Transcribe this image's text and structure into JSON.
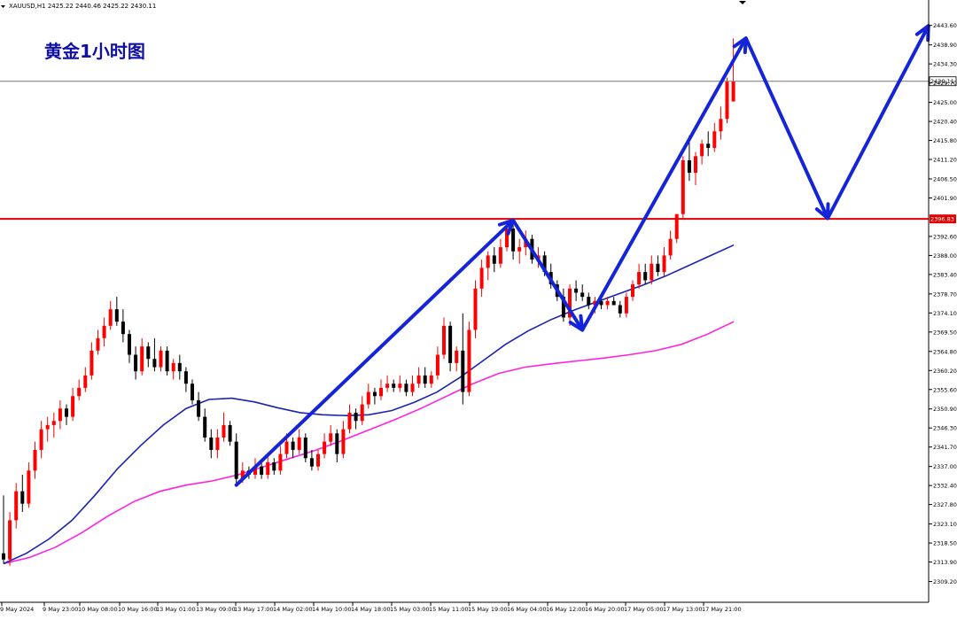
{
  "chart_data": {
    "type": "candlestick",
    "symbol_info": "XAUUSD,H1  2425.22 2440.46 2425.22 2430.11",
    "overlay_title": "黄金1小时图",
    "ylim": [
      2309.2,
      2446.0
    ],
    "y_ticks": [
      "2443.60",
      "2438.90",
      "2434.30",
      "2429.70",
      "2425.00",
      "2420.40",
      "2415.80",
      "2411.20",
      "2406.50",
      "2401.90",
      "2396.83",
      "2392.60",
      "2388.00",
      "2383.40",
      "2378.70",
      "2374.10",
      "2369.50",
      "2364.80",
      "2360.20",
      "2355.60",
      "2350.90",
      "2346.30",
      "2341.70",
      "2337.00",
      "2332.40",
      "2327.80",
      "2323.10",
      "2318.50",
      "2313.90",
      "2309.20"
    ],
    "x_ticks": [
      "9 May 2024",
      "9 May 23:00",
      "10 May 08:00",
      "10 May 16:00",
      "13 May 01:00",
      "13 May 09:00",
      "13 May 17:00",
      "14 May 02:00",
      "14 May 10:00",
      "14 May 18:00",
      "15 May 03:00",
      "15 May 11:00",
      "15 May 19:00",
      "16 May 04:00",
      "16 May 12:00",
      "16 May 20:00",
      "17 May 05:00",
      "17 May 13:00",
      "17 May 21:00"
    ],
    "current_price": "2430.11",
    "resistance_level": "2396.83",
    "colors": {
      "bull": "#ff0000",
      "bear": "#000000",
      "ma_fast": "#1a24b0",
      "ma_slow": "#ff22dd",
      "arrow": "#1424d8",
      "level_line": "#e00000",
      "title": "#1010a8"
    },
    "candles": [
      [
        2316.0,
        2330.0,
        2313.5,
        2314.5
      ],
      [
        2314.5,
        2326.0,
        2313.0,
        2324.0
      ],
      [
        2324.0,
        2333.0,
        2322.0,
        2331.0
      ],
      [
        2331.0,
        2335.0,
        2326.0,
        2328.0
      ],
      [
        2328.0,
        2338.0,
        2327.0,
        2336.0
      ],
      [
        2336.0,
        2343.0,
        2334.0,
        2341.0
      ],
      [
        2341.0,
        2348.0,
        2339.0,
        2346.0
      ],
      [
        2346.0,
        2349.0,
        2343.0,
        2347.0
      ],
      [
        2347.0,
        2350.0,
        2344.0,
        2348.0
      ],
      [
        2348.0,
        2353.0,
        2346.0,
        2351.0
      ],
      [
        2351.0,
        2352.0,
        2347.0,
        2349.0
      ],
      [
        2349.0,
        2356.0,
        2348.0,
        2354.0
      ],
      [
        2354.0,
        2358.0,
        2353.0,
        2356.0
      ],
      [
        2356.0,
        2361.0,
        2355.0,
        2359.0
      ],
      [
        2359.0,
        2367.0,
        2358.0,
        2365.0
      ],
      [
        2365.0,
        2370.0,
        2364.0,
        2368.0
      ],
      [
        2368.0,
        2373.0,
        2366.0,
        2371.0
      ],
      [
        2371.0,
        2377.0,
        2370.0,
        2375.0
      ],
      [
        2375.0,
        2378.0,
        2371.0,
        2372.0
      ],
      [
        2372.0,
        2375.0,
        2367.0,
        2369.0
      ],
      [
        2369.0,
        2370.0,
        2362.0,
        2364.0
      ],
      [
        2364.0,
        2366.0,
        2358.0,
        2360.0
      ],
      [
        2360.0,
        2368.0,
        2359.0,
        2366.0
      ],
      [
        2366.0,
        2367.0,
        2361.0,
        2363.0
      ],
      [
        2363.0,
        2368.0,
        2360.0,
        2361.0
      ],
      [
        2361.0,
        2366.0,
        2360.0,
        2365.0
      ],
      [
        2365.0,
        2366.0,
        2359.0,
        2360.0
      ],
      [
        2360.0,
        2363.0,
        2358.0,
        2362.0
      ],
      [
        2362.0,
        2364.0,
        2358.0,
        2360.0
      ],
      [
        2360.0,
        2361.0,
        2355.0,
        2357.0
      ],
      [
        2357.0,
        2358.0,
        2352.0,
        2353.0
      ],
      [
        2353.0,
        2355.0,
        2348.0,
        2349.0
      ],
      [
        2349.0,
        2351.0,
        2343.0,
        2344.0
      ],
      [
        2344.0,
        2346.0,
        2339.0,
        2341.0
      ],
      [
        2341.0,
        2346.0,
        2339.0,
        2344.0
      ],
      [
        2344.0,
        2350.0,
        2343.0,
        2347.0
      ],
      [
        2347.0,
        2348.0,
        2342.0,
        2343.0
      ],
      [
        2343.0,
        2345.0,
        2332.5,
        2334.0
      ],
      [
        2334.0,
        2338.0,
        2333.0,
        2336.0
      ],
      [
        2336.0,
        2337.0,
        2334.0,
        2335.0
      ],
      [
        2335.0,
        2339.0,
        2334.0,
        2337.0
      ],
      [
        2337.0,
        2338.0,
        2334.0,
        2335.0
      ],
      [
        2335.0,
        2340.0,
        2334.0,
        2338.0
      ],
      [
        2338.0,
        2339.0,
        2335.0,
        2336.0
      ],
      [
        2336.0,
        2342.0,
        2335.0,
        2340.0
      ],
      [
        2340.0,
        2345.0,
        2339.0,
        2343.0
      ],
      [
        2343.0,
        2344.0,
        2339.0,
        2341.0
      ],
      [
        2341.0,
        2346.0,
        2340.0,
        2344.0
      ],
      [
        2344.0,
        2345.0,
        2338.0,
        2339.0
      ],
      [
        2339.0,
        2341.0,
        2336.0,
        2337.0
      ],
      [
        2337.0,
        2341.0,
        2336.0,
        2340.0
      ],
      [
        2340.0,
        2345.0,
        2339.0,
        2343.0
      ],
      [
        2343.0,
        2347.0,
        2342.0,
        2345.0
      ],
      [
        2345.0,
        2346.0,
        2338.0,
        2340.0
      ],
      [
        2340.0,
        2348.0,
        2339.0,
        2346.0
      ],
      [
        2346.0,
        2352.0,
        2345.0,
        2350.0
      ],
      [
        2350.0,
        2351.0,
        2346.0,
        2348.0
      ],
      [
        2348.0,
        2354.0,
        2347.0,
        2352.0
      ],
      [
        2352.0,
        2357.0,
        2351.0,
        2355.0
      ],
      [
        2355.0,
        2356.0,
        2352.0,
        2354.0
      ],
      [
        2354.0,
        2358.0,
        2353.0,
        2356.0
      ],
      [
        2356.0,
        2359.0,
        2355.0,
        2357.0
      ],
      [
        2357.0,
        2358.0,
        2355.0,
        2356.0
      ],
      [
        2356.0,
        2359.0,
        2355.0,
        2357.0
      ],
      [
        2357.0,
        2358.0,
        2354.0,
        2355.0
      ],
      [
        2355.0,
        2359.0,
        2354.0,
        2357.0
      ],
      [
        2357.0,
        2361.0,
        2356.0,
        2359.0
      ],
      [
        2359.0,
        2361.0,
        2356.0,
        2357.0
      ],
      [
        2357.0,
        2360.0,
        2356.0,
        2359.0
      ],
      [
        2359.0,
        2366.0,
        2358.0,
        2364.0
      ],
      [
        2364.0,
        2373.0,
        2363.0,
        2371.0
      ],
      [
        2371.0,
        2372.0,
        2360.0,
        2362.0
      ],
      [
        2362.0,
        2366.0,
        2360.0,
        2365.0
      ],
      [
        2365.0,
        2374.0,
        2352.0,
        2355.0
      ],
      [
        2355.0,
        2372.0,
        2354.0,
        2370.0
      ],
      [
        2370.0,
        2382.0,
        2368.0,
        2380.0
      ],
      [
        2380.0,
        2387.0,
        2378.0,
        2385.0
      ],
      [
        2385.0,
        2389.0,
        2382.0,
        2388.0
      ],
      [
        2388.0,
        2390.0,
        2384.0,
        2386.0
      ],
      [
        2386.0,
        2392.0,
        2385.0,
        2390.0
      ],
      [
        2390.0,
        2396.5,
        2389.0,
        2394.5
      ],
      [
        2394.5,
        2396.0,
        2387.0,
        2389.0
      ],
      [
        2389.0,
        2392.0,
        2386.0,
        2390.0
      ],
      [
        2390.0,
        2394.0,
        2388.0,
        2392.0
      ],
      [
        2392.0,
        2393.0,
        2386.0,
        2387.0
      ],
      [
        2387.0,
        2390.0,
        2385.0,
        2388.0
      ],
      [
        2388.0,
        2389.0,
        2383.0,
        2384.0
      ],
      [
        2384.0,
        2386.0,
        2380.0,
        2381.0
      ],
      [
        2381.0,
        2382.0,
        2377.0,
        2378.0
      ],
      [
        2378.0,
        2380.0,
        2372.0,
        2373.0
      ],
      [
        2373.0,
        2381.0,
        2371.0,
        2380.0
      ],
      [
        2380.0,
        2382.0,
        2377.0,
        2379.0
      ],
      [
        2379.0,
        2381.0,
        2377.0,
        2378.0
      ],
      [
        2378.0,
        2379.0,
        2375.0,
        2376.0
      ],
      [
        2376.0,
        2378.0,
        2374.0,
        2377.0
      ],
      [
        2377.0,
        2378.0,
        2375.0,
        2376.0
      ],
      [
        2376.0,
        2378.0,
        2375.0,
        2377.0
      ],
      [
        2377.0,
        2378.0,
        2376.0,
        2376.0
      ],
      [
        2376.0,
        2377.0,
        2373.0,
        2374.0
      ],
      [
        2374.0,
        2379.0,
        2373.0,
        2378.0
      ],
      [
        2378.0,
        2382.0,
        2377.0,
        2381.0
      ],
      [
        2381.0,
        2386.0,
        2380.0,
        2384.0
      ],
      [
        2384.0,
        2386.0,
        2381.0,
        2382.0
      ],
      [
        2382.0,
        2388.0,
        2381.0,
        2386.0
      ],
      [
        2386.0,
        2388.0,
        2383.0,
        2384.0
      ],
      [
        2384.0,
        2390.0,
        2383.0,
        2388.0
      ],
      [
        2388.0,
        2394.0,
        2387.0,
        2392.0
      ],
      [
        2392.0,
        2398.0,
        2391.0,
        2398.0
      ],
      [
        2398.0,
        2412.0,
        2397.0,
        2411.0
      ],
      [
        2411.0,
        2417.0,
        2406.0,
        2408.0
      ],
      [
        2408.0,
        2413.0,
        2405.0,
        2412.0
      ],
      [
        2412.0,
        2416.0,
        2410.0,
        2415.0
      ],
      [
        2415.0,
        2418.0,
        2412.0,
        2414.0
      ],
      [
        2414.0,
        2420.0,
        2413.0,
        2418.0
      ],
      [
        2418.0,
        2424.0,
        2416.0,
        2421.0
      ],
      [
        2421.0,
        2431.0,
        2420.0,
        2430.0
      ],
      [
        2425.22,
        2440.46,
        2425.22,
        2430.11
      ]
    ],
    "ma_fast": [
      2313.5,
      2316.0,
      2319.5,
      2324.0,
      2330.0,
      2336.5,
      2342.0,
      2347.0,
      2351.0,
      2353.2,
      2353.5,
      2352.6,
      2351.2,
      2350.0,
      2349.5,
      2349.3,
      2349.5,
      2350.5,
      2352.5,
      2355.0,
      2358.5,
      2362.5,
      2366.5,
      2369.8,
      2372.5,
      2374.8,
      2376.8,
      2378.8,
      2380.8,
      2383.0,
      2385.5,
      2388.0,
      2390.5
    ],
    "ma_slow": [
      2313.5,
      2315.0,
      2317.5,
      2321.0,
      2325.0,
      2328.5,
      2331.0,
      2332.5,
      2333.5,
      2335.0,
      2337.0,
      2339.0,
      2341.0,
      2343.3,
      2345.8,
      2348.3,
      2351.0,
      2354.0,
      2357.0,
      2359.5,
      2361.0,
      2361.8,
      2362.5,
      2363.2,
      2364.0,
      2365.0,
      2366.5,
      2369.0,
      2372.0
    ],
    "arrow_path": [
      [
        37,
        2332.5
      ],
      [
        81,
        2396.5
      ],
      [
        92,
        2370.0
      ],
      [
        118,
        2440.5
      ],
      [
        131,
        2397.0
      ],
      [
        147,
        2443.5
      ]
    ]
  }
}
